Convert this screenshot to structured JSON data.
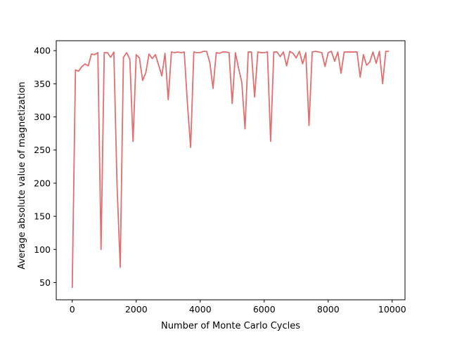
{
  "chart_data": {
    "type": "line",
    "title": "",
    "xlabel": "Number of Monte Carlo Cycles",
    "ylabel": "Average absolute value of magnetization",
    "xlim": [
      -500,
      10400
    ],
    "ylim": [
      24,
      415
    ],
    "xticks": [
      0,
      2000,
      4000,
      6000,
      8000,
      10000
    ],
    "yticks": [
      50,
      100,
      150,
      200,
      250,
      300,
      350,
      400
    ],
    "grid": false,
    "legend": "none",
    "colors": {
      "line": "#e07070",
      "axis": "#000000"
    },
    "series": [
      {
        "x": [
          0,
          100,
          200,
          300,
          400,
          500,
          600,
          700,
          800,
          900,
          1000,
          1100,
          1200,
          1300,
          1400,
          1500,
          1600,
          1700,
          1800,
          1900,
          2000,
          2100,
          2200,
          2300,
          2400,
          2500,
          2600,
          2700,
          2800,
          2900,
          3000,
          3100,
          3200,
          3300,
          3400,
          3500,
          3600,
          3700,
          3800,
          3900,
          4000,
          4100,
          4200,
          4300,
          4400,
          4500,
          4600,
          4700,
          4800,
          4900,
          5000,
          5100,
          5200,
          5300,
          5400,
          5500,
          5600,
          5700,
          5800,
          5900,
          6000,
          6100,
          6200,
          6300,
          6400,
          6500,
          6600,
          6700,
          6800,
          6900,
          7000,
          7100,
          7200,
          7300,
          7400,
          7500,
          7600,
          7700,
          7800,
          7900,
          8000,
          8100,
          8200,
          8300,
          8400,
          8500,
          8600,
          8700,
          8800,
          8900,
          9000,
          9100,
          9200,
          9300,
          9400,
          9500,
          9600,
          9700,
          9800,
          9900
        ],
        "values": [
          42,
          371,
          369,
          376,
          380,
          377,
          395,
          394,
          397,
          100,
          397,
          397,
          390,
          398,
          197,
          73,
          390,
          397,
          387,
          263,
          394,
          389,
          355,
          367,
          395,
          388,
          394,
          378,
          362,
          396,
          326,
          398,
          397,
          398,
          397,
          398,
          320,
          254,
          398,
          397,
          397,
          399,
          399,
          382,
          343,
          397,
          396,
          398,
          398,
          397,
          320,
          397,
          373,
          352,
          282,
          398,
          398,
          330,
          398,
          397,
          397,
          398,
          263,
          398,
          398,
          391,
          398,
          377,
          399,
          396,
          389,
          399,
          380,
          397,
          287,
          398,
          399,
          398,
          397,
          376,
          397,
          399,
          384,
          398,
          366,
          398,
          398,
          398,
          398,
          398,
          360,
          394,
          378,
          383,
          398,
          381,
          399,
          350,
          399,
          399
        ]
      }
    ]
  }
}
